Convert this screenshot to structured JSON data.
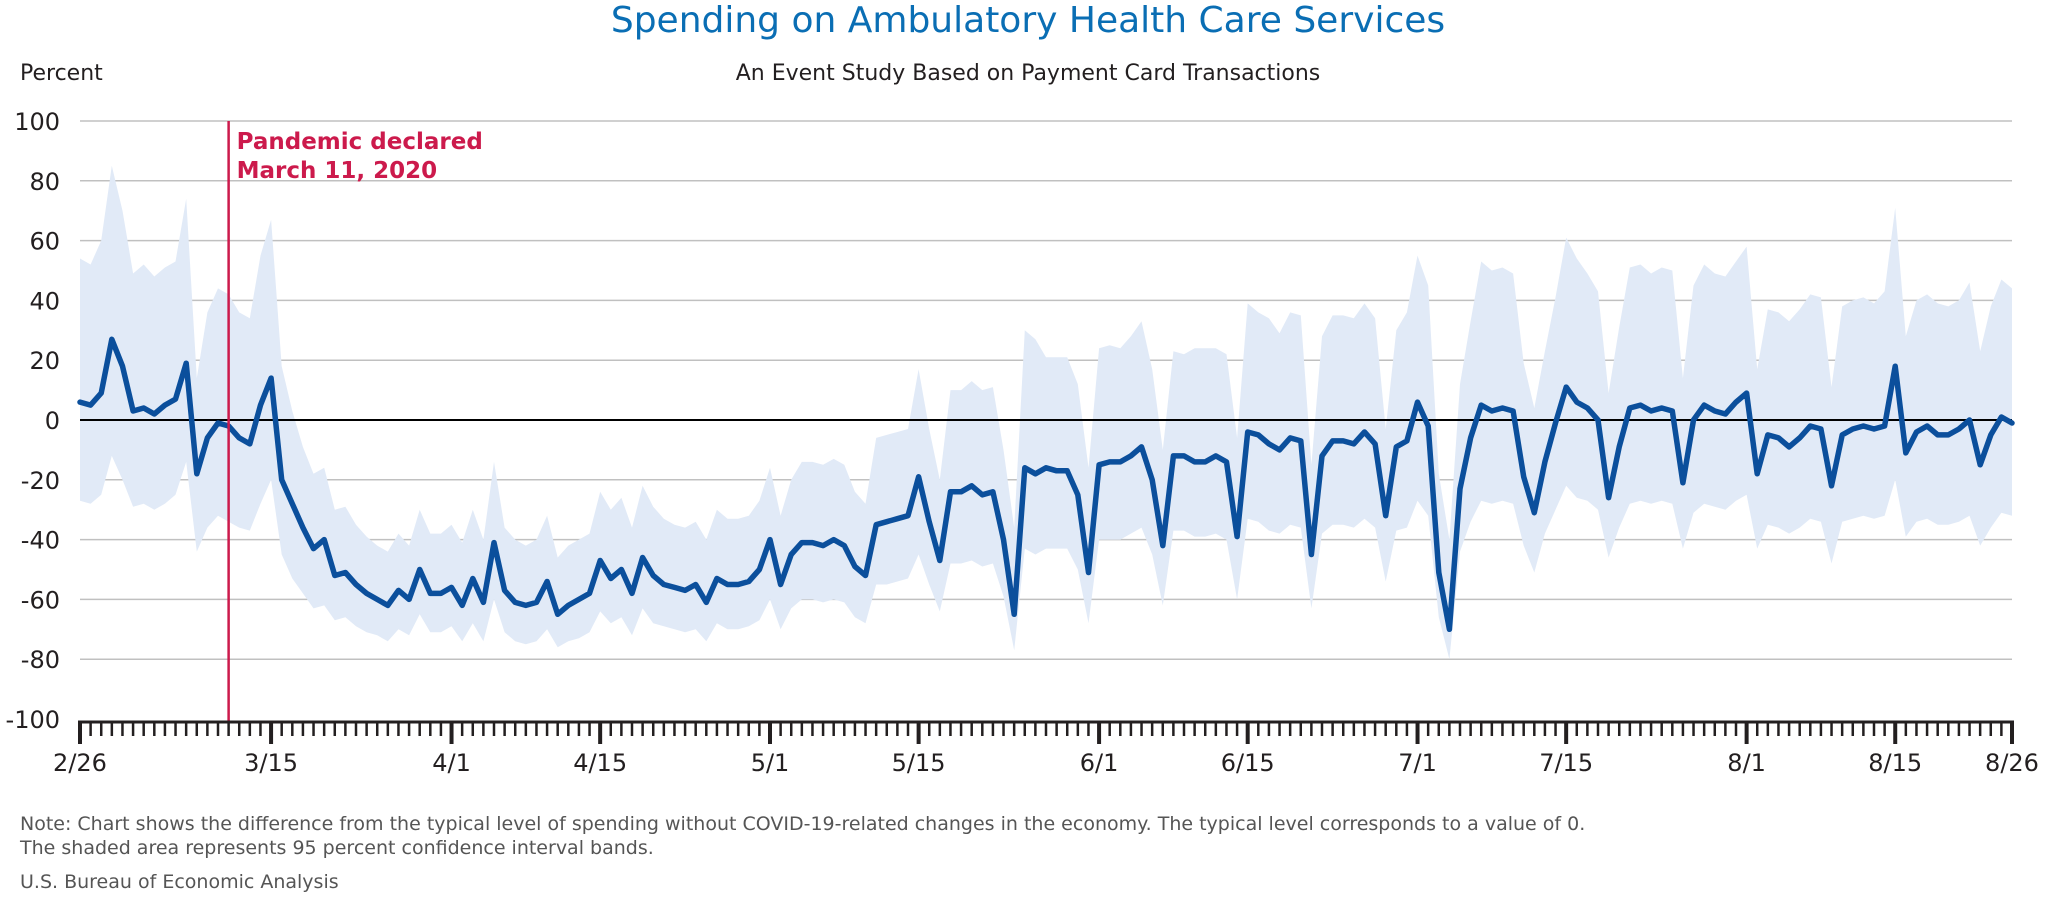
{
  "chart_data": {
    "type": "line",
    "title": "Spending on Ambulatory Health Care Services",
    "subtitle": "An Event Study Based on Payment Card Transactions",
    "ylabel": "Percent",
    "xlabel": "",
    "ylim": [
      -100,
      100
    ],
    "yticks": [
      "100",
      "80",
      "60",
      "40",
      "20",
      "0",
      "-20",
      "-40",
      "-60",
      "-80",
      "-100"
    ],
    "x_start": "2/26",
    "x_end": "8/26",
    "xtick_labels": [
      {
        "label": "2/26",
        "day": 0
      },
      {
        "label": "3/15",
        "day": 18
      },
      {
        "label": "4/1",
        "day": 35
      },
      {
        "label": "4/15",
        "day": 49
      },
      {
        "label": "5/1",
        "day": 65
      },
      {
        "label": "5/15",
        "day": 79
      },
      {
        "label": "6/1",
        "day": 96
      },
      {
        "label": "6/15",
        "day": 110
      },
      {
        "label": "7/1",
        "day": 126
      },
      {
        "label": "7/15",
        "day": 140
      },
      {
        "label": "8/1",
        "day": 157
      },
      {
        "label": "8/15",
        "day": 171
      },
      {
        "label": "8/26",
        "day": 182
      }
    ],
    "grid": true,
    "annotation": {
      "lines": [
        "Pandemic declared",
        "March 11, 2020"
      ],
      "day": 14
    },
    "series": [
      {
        "kind": "line",
        "color": "#0b4f9c",
        "values": [
          6,
          5,
          9,
          27,
          18,
          3,
          4,
          2,
          5,
          7,
          19,
          -18,
          -6,
          -1,
          -2,
          -6,
          -8,
          5,
          14,
          -20,
          -28,
          -36,
          -43,
          -40,
          -52,
          -51,
          -55,
          -58,
          -60,
          -62,
          -57,
          -60,
          -50,
          -58,
          -58,
          -56,
          -62,
          -53,
          -61,
          -41,
          -57,
          -61,
          -62,
          -61,
          -54,
          -65,
          -62,
          -60,
          -58,
          -47,
          -53,
          -50,
          -58,
          -46,
          -52,
          -55,
          -56,
          -57,
          -55,
          -61,
          -53,
          -55,
          -55,
          -54,
          -50,
          -40,
          -55,
          -45,
          -41,
          -41,
          -42,
          -40,
          -42,
          -49,
          -52,
          -35,
          -34,
          -33,
          -32,
          -19,
          -34,
          -47,
          -24,
          -24,
          -22,
          -25,
          -24,
          -40,
          -65,
          -16,
          -18,
          -16,
          -17,
          -17,
          -25,
          -51,
          -15,
          -14,
          -14,
          -12,
          -9,
          -20,
          -42,
          -12,
          -12,
          -14,
          -14,
          -12,
          -14,
          -39,
          -4,
          -5,
          -8,
          -10,
          -6,
          -7,
          -45,
          -12,
          -7,
          -7,
          -8,
          -4,
          -8,
          -32,
          -9,
          -7,
          6,
          -2,
          -51,
          -70,
          -23,
          -6,
          5,
          3,
          4,
          3,
          -19,
          -31,
          -14,
          -1,
          11,
          6,
          4,
          0,
          -26,
          -9,
          4,
          5,
          3,
          4,
          3,
          -21,
          0,
          5,
          3,
          2,
          6,
          9,
          -18,
          -5,
          -6,
          -9,
          -6,
          -2,
          -3,
          -22,
          -5,
          -3,
          -2,
          -3,
          -2,
          18,
          -11,
          -4,
          -2,
          -5,
          -5,
          -3,
          0,
          -15,
          -5,
          1,
          -1
        ],
        "upper": [
          54,
          52,
          60,
          85,
          70,
          49,
          52,
          48,
          51,
          53,
          74,
          14,
          36,
          44,
          42,
          36,
          34,
          55,
          67,
          18,
          3,
          -9,
          -18,
          -16,
          -30,
          -29,
          -35,
          -39,
          -42,
          -44,
          -38,
          -42,
          -30,
          -38,
          -38,
          -35,
          -41,
          -30,
          -40,
          -14,
          -36,
          -40,
          -42,
          -40,
          -32,
          -46,
          -42,
          -40,
          -38,
          -24,
          -30,
          -26,
          -36,
          -22,
          -29,
          -33,
          -35,
          -36,
          -34,
          -40,
          -30,
          -33,
          -33,
          -32,
          -27,
          -16,
          -32,
          -20,
          -14,
          -14,
          -15,
          -13,
          -15,
          -24,
          -28,
          -6,
          -5,
          -4,
          -3,
          17,
          -3,
          -20,
          10,
          10,
          13,
          10,
          11,
          -10,
          -36,
          30,
          27,
          21,
          21,
          21,
          12,
          -16,
          24,
          25,
          24,
          28,
          33,
          17,
          -10,
          23,
          22,
          24,
          24,
          24,
          22,
          -6,
          39,
          36,
          34,
          29,
          36,
          35,
          -15,
          28,
          35,
          35,
          34,
          39,
          34,
          -3,
          30,
          36,
          55,
          45,
          -18,
          -40,
          12,
          33,
          53,
          50,
          51,
          49,
          19,
          4,
          23,
          41,
          61,
          54,
          49,
          43,
          9,
          31,
          51,
          52,
          49,
          51,
          50,
          14,
          45,
          52,
          49,
          48,
          53,
          58,
          17,
          37,
          36,
          33,
          37,
          42,
          41,
          11,
          38,
          40,
          41,
          39,
          43,
          71,
          28,
          40,
          42,
          39,
          38,
          40,
          46,
          23,
          38,
          47,
          44
        ],
        "lower": [
          -27,
          -28,
          -25,
          -12,
          -20,
          -29,
          -28,
          -30,
          -28,
          -25,
          -14,
          -44,
          -36,
          -32,
          -34,
          -36,
          -37,
          -28,
          -20,
          -45,
          -53,
          -58,
          -63,
          -62,
          -67,
          -66,
          -69,
          -71,
          -72,
          -74,
          -70,
          -72,
          -65,
          -71,
          -71,
          -69,
          -74,
          -68,
          -74,
          -60,
          -71,
          -74,
          -75,
          -74,
          -70,
          -76,
          -74,
          -73,
          -71,
          -64,
          -68,
          -66,
          -72,
          -63,
          -68,
          -69,
          -70,
          -71,
          -70,
          -74,
          -68,
          -70,
          -70,
          -69,
          -67,
          -60,
          -70,
          -63,
          -60,
          -60,
          -61,
          -60,
          -61,
          -66,
          -68,
          -55,
          -55,
          -54,
          -53,
          -45,
          -55,
          -64,
          -48,
          -48,
          -47,
          -49,
          -48,
          -59,
          -77,
          -43,
          -45,
          -43,
          -43,
          -43,
          -50,
          -68,
          -40,
          -40,
          -40,
          -38,
          -36,
          -45,
          -62,
          -37,
          -37,
          -39,
          -39,
          -38,
          -40,
          -60,
          -33,
          -34,
          -37,
          -38,
          -35,
          -36,
          -63,
          -38,
          -35,
          -35,
          -36,
          -33,
          -36,
          -54,
          -37,
          -36,
          -27,
          -32,
          -66,
          -80,
          -44,
          -34,
          -27,
          -28,
          -27,
          -28,
          -42,
          -51,
          -38,
          -30,
          -22,
          -26,
          -27,
          -30,
          -46,
          -36,
          -28,
          -27,
          -28,
          -27,
          -28,
          -43,
          -31,
          -28,
          -29,
          -30,
          -27,
          -25,
          -43,
          -35,
          -36,
          -38,
          -36,
          -33,
          -34,
          -48,
          -34,
          -33,
          -32,
          -33,
          -32,
          -20,
          -39,
          -34,
          -33,
          -35,
          -35,
          -34,
          -32,
          -42,
          -36,
          -31,
          -32
        ]
      }
    ],
    "band_color": "#e1eaf7",
    "zero_line_color": "#000000",
    "grid_color": "#c0c0c0",
    "annotation_color": "#cc1a4c"
  },
  "notes": {
    "line1": "Note: Chart shows the difference from the typical level of spending without COVID-19-related changes in the economy. The typical level corresponds to a value of 0.",
    "line2": "The shaded area represents 95 percent confidence interval bands.",
    "source": "U.S. Bureau of Economic Analysis"
  }
}
